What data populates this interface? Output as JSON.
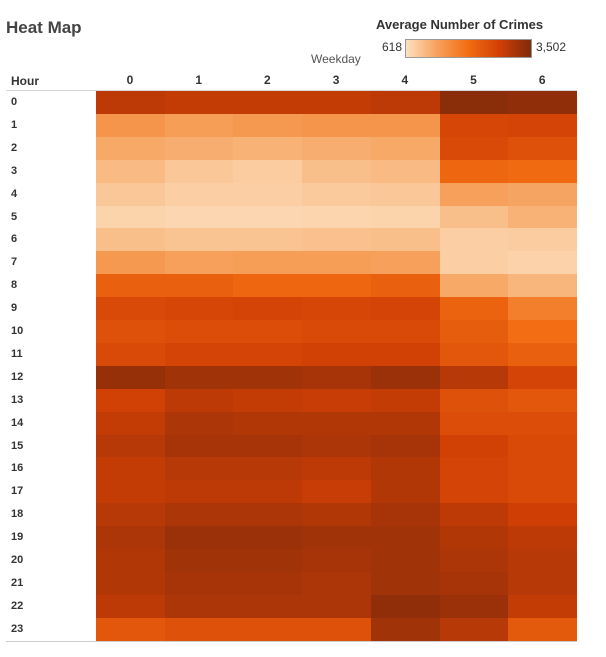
{
  "header": {
    "title": "Heat Map"
  },
  "legend": {
    "title": "Average Number of Crimes",
    "min_label": "618",
    "max_label": "3,502",
    "colors": [
      "#fde0c0",
      "#f6a15c",
      "#f26c12",
      "#d03f05",
      "#7f2a0a"
    ]
  },
  "chart_data": {
    "type": "heatmap",
    "title": "Heat Map",
    "x_axis_title": "Weekday",
    "row_header": "Hour",
    "columns": [
      "0",
      "1",
      "2",
      "3",
      "4",
      "5",
      "6"
    ],
    "rows": [
      "0",
      "1",
      "2",
      "3",
      "4",
      "5",
      "6",
      "7",
      "8",
      "9",
      "10",
      "11",
      "12",
      "13",
      "14",
      "15",
      "16",
      "17",
      "18",
      "19",
      "20",
      "21",
      "22",
      "23"
    ],
    "color_scale": {
      "label": "Average Number of Crimes",
      "min": 618,
      "max": 3502
    },
    "values": [
      [
        2950,
        2900,
        2900,
        2900,
        2950,
        3400,
        3350
      ],
      [
        1500,
        1400,
        1450,
        1500,
        1500,
        2650,
        2700
      ],
      [
        1250,
        1200,
        1150,
        1200,
        1250,
        2600,
        2500
      ],
      [
        1050,
        900,
        850,
        1000,
        1050,
        2150,
        2100
      ],
      [
        900,
        820,
        820,
        880,
        900,
        1350,
        1300
      ],
      [
        760,
        730,
        730,
        740,
        760,
        1000,
        1150
      ],
      [
        1000,
        950,
        950,
        970,
        1000,
        820,
        850
      ],
      [
        1450,
        1350,
        1400,
        1400,
        1350,
        820,
        780
      ],
      [
        2250,
        2250,
        2150,
        2150,
        2250,
        1250,
        1100
      ],
      [
        2600,
        2650,
        2700,
        2650,
        2700,
        2200,
        1800
      ],
      [
        2500,
        2550,
        2550,
        2600,
        2600,
        2300,
        2050
      ],
      [
        2600,
        2700,
        2700,
        2750,
        2750,
        2400,
        2250
      ],
      [
        3300,
        3200,
        3200,
        3150,
        3250,
        3000,
        2700
      ],
      [
        2750,
        2950,
        2900,
        2850,
        2900,
        2500,
        2400
      ],
      [
        2900,
        3100,
        3050,
        3050,
        3050,
        2550,
        2550
      ],
      [
        3000,
        3150,
        3150,
        3100,
        3150,
        2750,
        2600
      ],
      [
        2900,
        3000,
        3000,
        2950,
        3050,
        2700,
        2600
      ],
      [
        2900,
        2950,
        2950,
        2850,
        3050,
        2700,
        2600
      ],
      [
        3000,
        3100,
        3100,
        3050,
        3150,
        2950,
        2800
      ],
      [
        3100,
        3250,
        3250,
        3200,
        3200,
        3050,
        2950
      ],
      [
        3050,
        3200,
        3200,
        3150,
        3200,
        3100,
        3000
      ],
      [
        3050,
        3150,
        3150,
        3100,
        3200,
        3150,
        3000
      ],
      [
        2950,
        3100,
        3100,
        3100,
        3350,
        3250,
        2900
      ],
      [
        2400,
        2500,
        2500,
        2500,
        3200,
        3000,
        2350
      ]
    ]
  }
}
